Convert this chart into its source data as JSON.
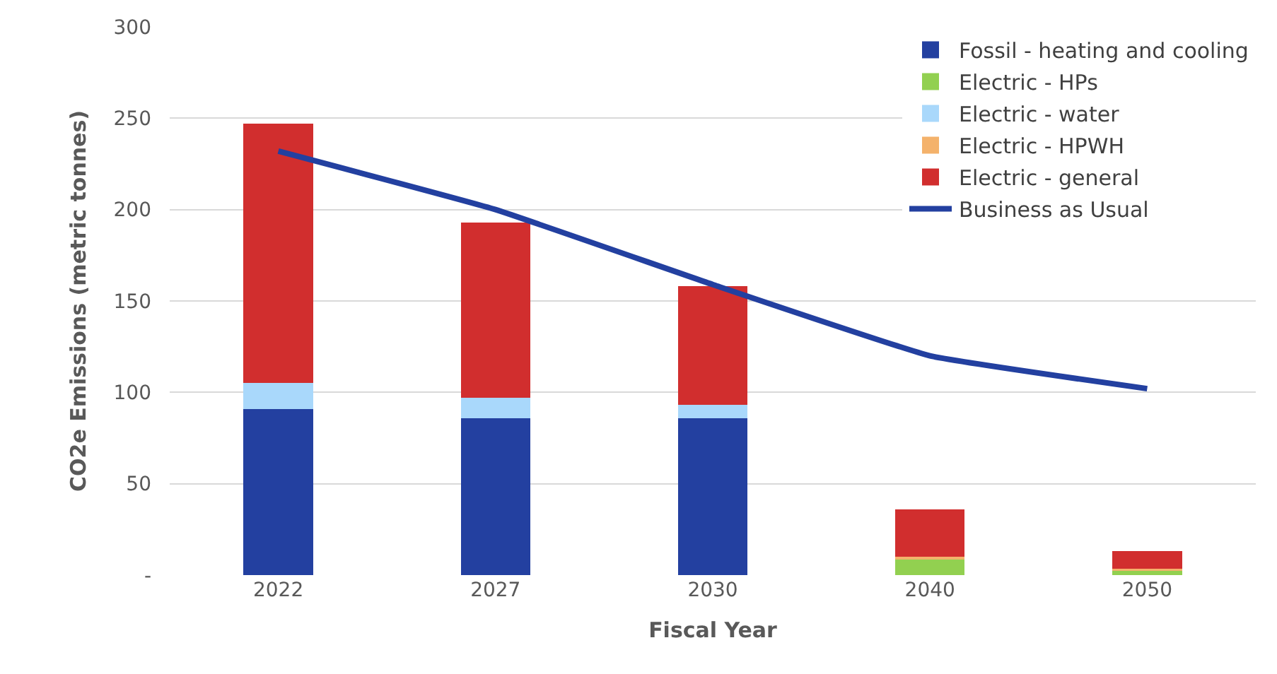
{
  "chart_data": {
    "type": "bar",
    "stacked": true,
    "xlabel": "Fiscal Year",
    "ylabel": "CO2e Emissions (metric tonnes)",
    "categories": [
      "2022",
      "2027",
      "2030",
      "2040",
      "2050"
    ],
    "series": [
      {
        "name": "Fossil - heating and cooling",
        "color": "#2340a0",
        "values": [
          91,
          86,
          86,
          0,
          0
        ]
      },
      {
        "name": "Electric - HPs",
        "color": "#92d050",
        "values": [
          0,
          0,
          0,
          9,
          3
        ]
      },
      {
        "name": "Electric - water",
        "color": "#a9d8fb",
        "values": [
          14,
          11,
          7,
          0,
          0
        ]
      },
      {
        "name": "Electric - HPWH",
        "color": "#f4b26b",
        "values": [
          0,
          0,
          0,
          1,
          0.5
        ]
      },
      {
        "name": "Electric - general",
        "color": "#d12e2e",
        "values": [
          142,
          96,
          65,
          26,
          9.5
        ]
      },
      {
        "name": "Business as Usual",
        "type": "line",
        "color": "#2340a0",
        "values": [
          232,
          200,
          159,
          120,
          102
        ]
      }
    ],
    "ylim": [
      0,
      300
    ],
    "yticks": [
      {
        "value": 0,
        "label": "-"
      },
      50,
      100,
      150,
      200,
      250,
      300
    ],
    "grid": "y",
    "legend": "top right",
    "marker": "none"
  }
}
